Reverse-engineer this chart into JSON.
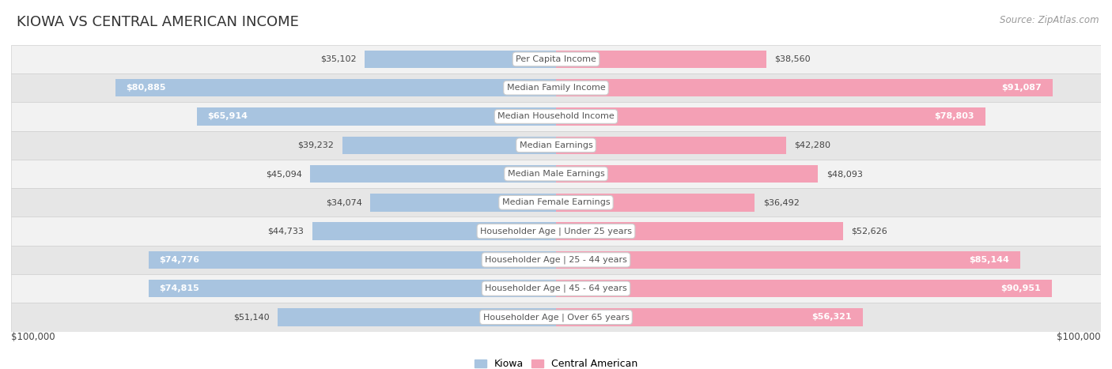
{
  "title": "KIOWA VS CENTRAL AMERICAN INCOME",
  "source": "Source: ZipAtlas.com",
  "categories": [
    "Per Capita Income",
    "Median Family Income",
    "Median Household Income",
    "Median Earnings",
    "Median Male Earnings",
    "Median Female Earnings",
    "Householder Age | Under 25 years",
    "Householder Age | 25 - 44 years",
    "Householder Age | 45 - 64 years",
    "Householder Age | Over 65 years"
  ],
  "kiowa_values": [
    35102,
    80885,
    65914,
    39232,
    45094,
    34074,
    44733,
    74776,
    74815,
    51140
  ],
  "central_values": [
    38560,
    91087,
    78803,
    42280,
    48093,
    36492,
    52626,
    85144,
    90951,
    56321
  ],
  "kiowa_labels": [
    "$35,102",
    "$80,885",
    "$65,914",
    "$39,232",
    "$45,094",
    "$34,074",
    "$44,733",
    "$74,776",
    "$74,815",
    "$51,140"
  ],
  "central_labels": [
    "$38,560",
    "$91,087",
    "$78,803",
    "$42,280",
    "$48,093",
    "$36,492",
    "$52,626",
    "$85,144",
    "$90,951",
    "$56,321"
  ],
  "max_value": 100000,
  "kiowa_color": "#a8c4e0",
  "central_color": "#f4a0b5",
  "bar_height": 0.62,
  "row_bg_light": "#f2f2f2",
  "row_bg_dark": "#e6e6e6",
  "row_border_color": "#d0d0d0",
  "legend_kiowa": "Kiowa",
  "legend_central": "Central American",
  "xlabel_left": "$100,000",
  "xlabel_right": "$100,000",
  "title_fontsize": 13,
  "source_fontsize": 8.5,
  "label_fontsize": 8,
  "category_fontsize": 8,
  "legend_fontsize": 9,
  "inside_label_threshold": 55000,
  "outside_label_color": "#444444",
  "inside_label_color": "#ffffff",
  "cat_box_facecolor": "white",
  "cat_box_edgecolor": "#cccccc",
  "cat_text_color": "#555555"
}
